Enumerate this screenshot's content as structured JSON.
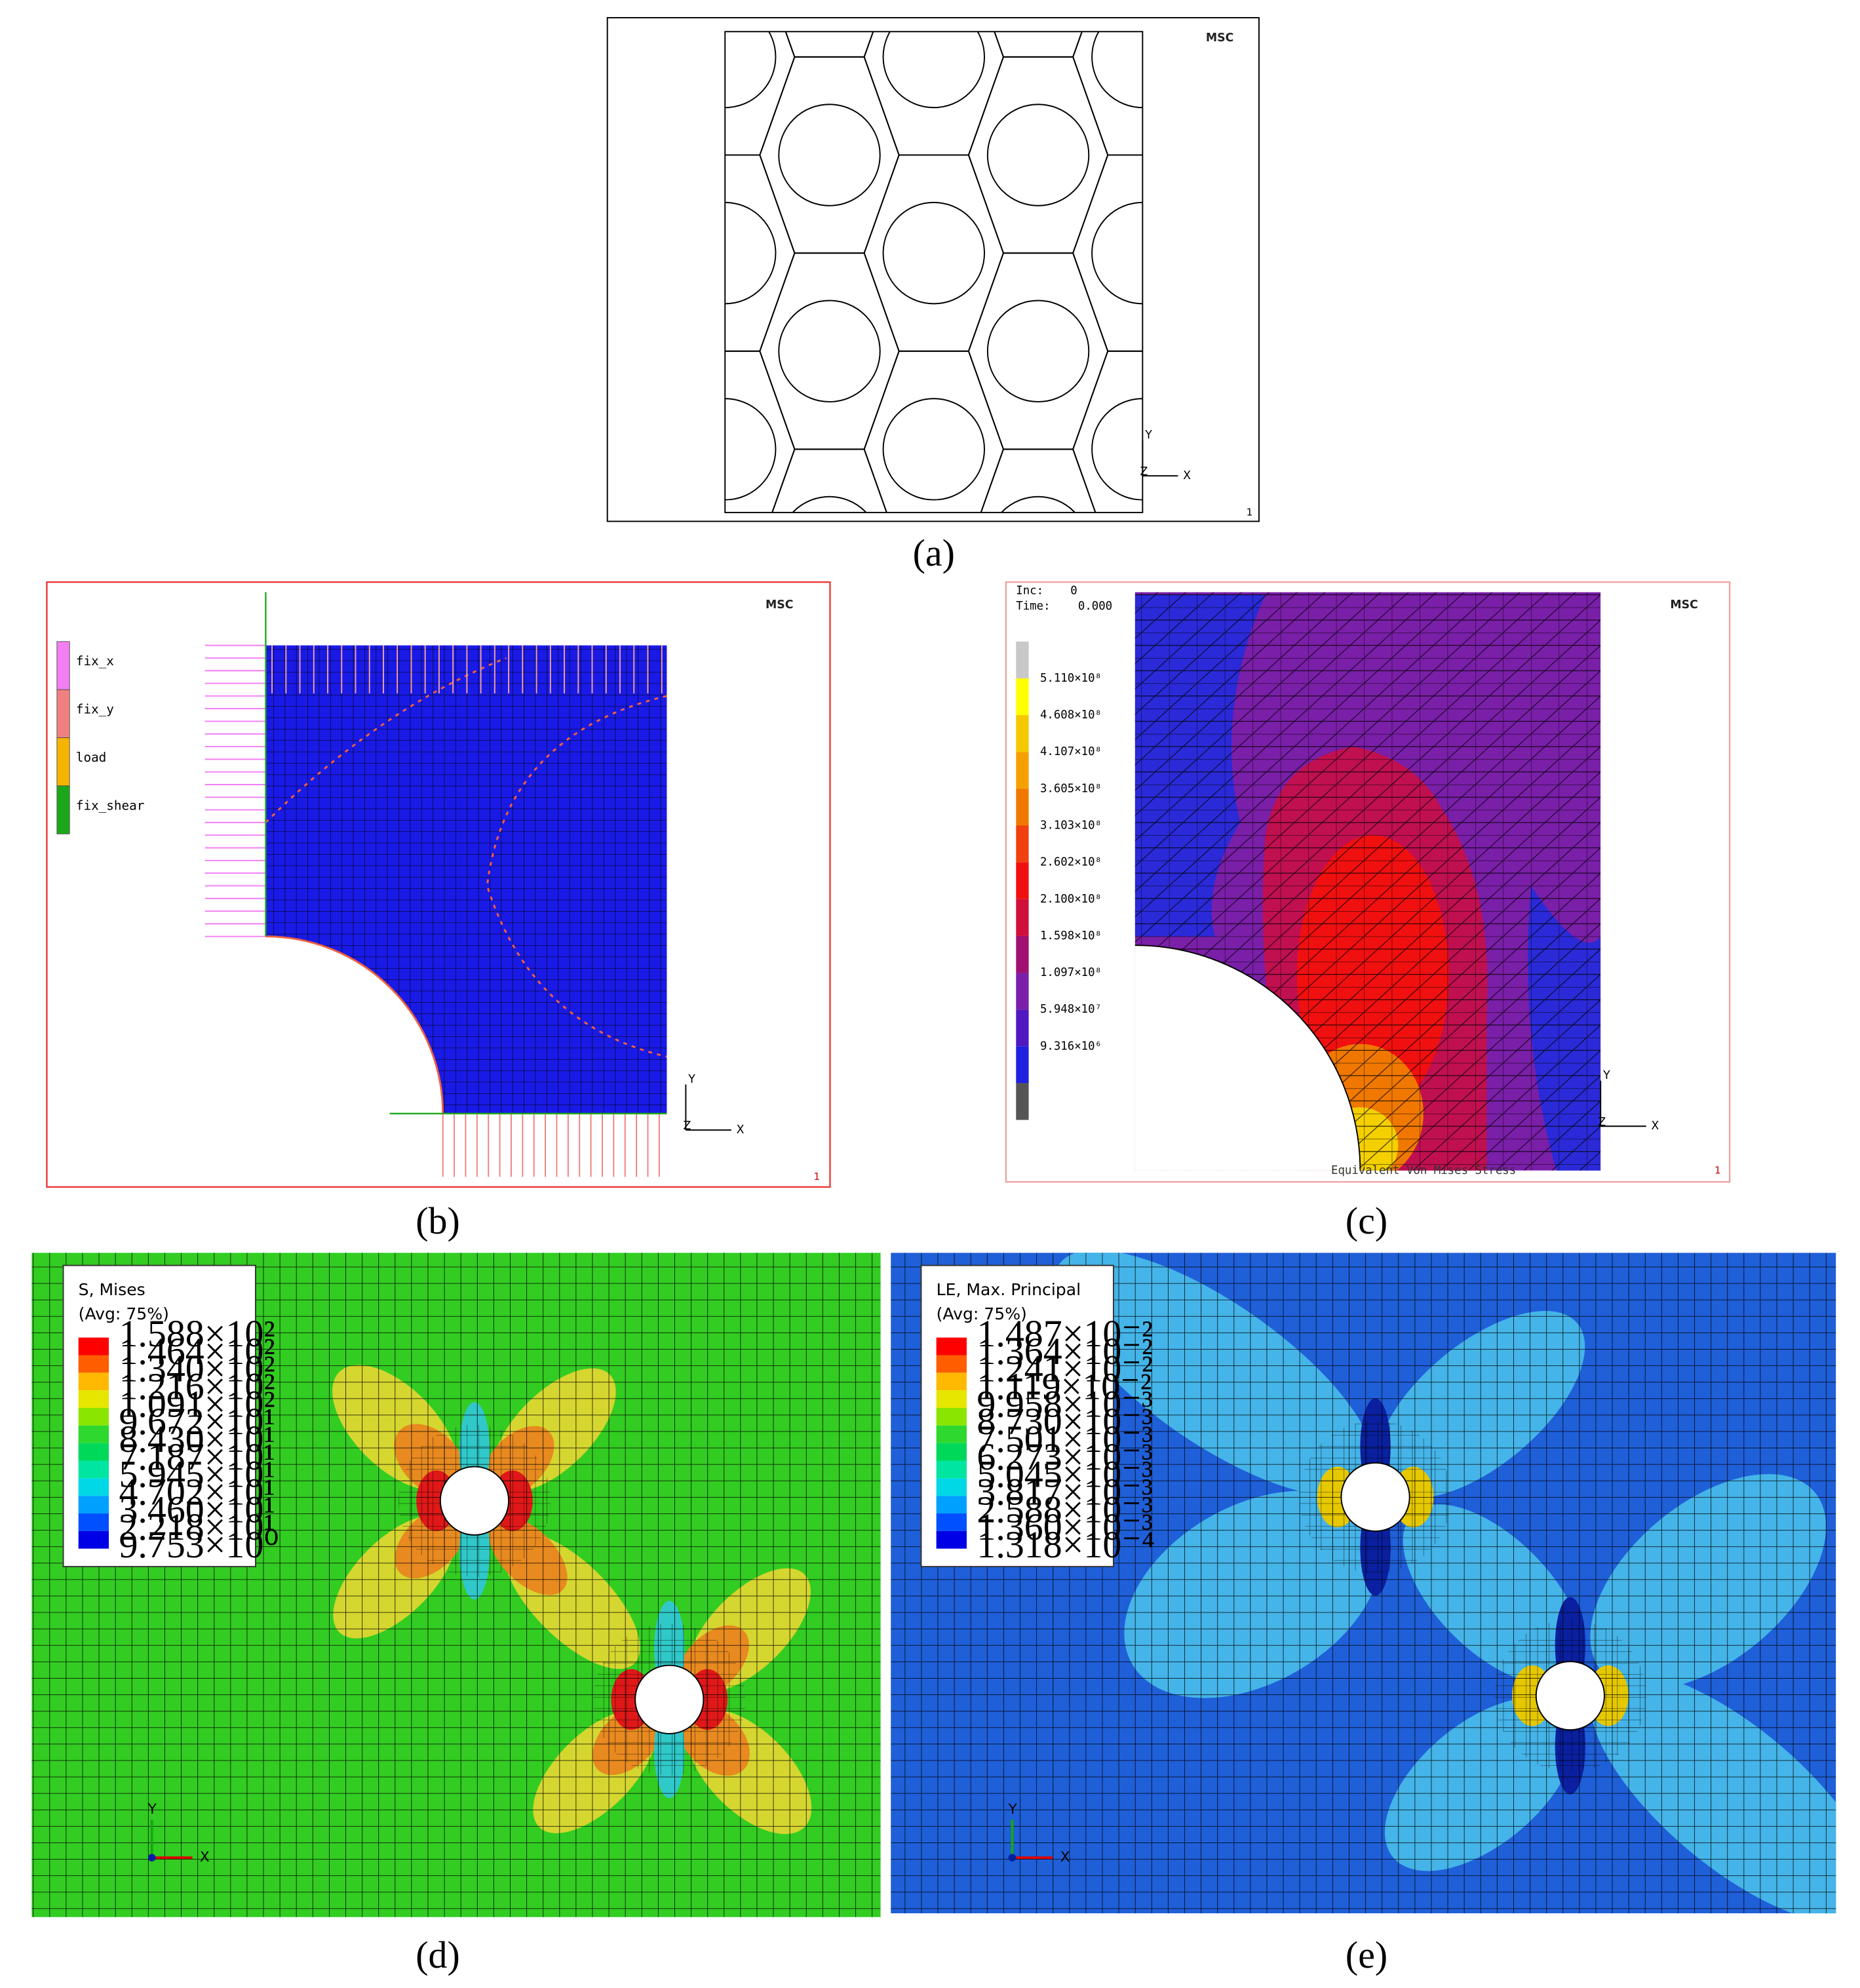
{
  "panels": [
    {
      "caption": "(a)",
      "logo": "MSC",
      "axes": {
        "y": "Y",
        "z": "Z",
        "x": "X"
      },
      "id_label": "1"
    },
    {
      "caption": "(b)",
      "logo": "MSC",
      "legend": [
        "fix_x",
        "fix_y",
        "load",
        "fix_shear"
      ],
      "axes": {
        "y": "Y",
        "z": "Z",
        "x": "X"
      },
      "id_label": "1"
    },
    {
      "caption": "(c)",
      "logo": "MSC",
      "inc_label": "Inc:",
      "inc": "0",
      "time_label": "Time:",
      "time": "0.000",
      "legend": [
        "5.110×10⁸",
        "4.608×10⁸",
        "4.107×10⁸",
        "3.605×10⁸",
        "3.103×10⁸",
        "2.602×10⁸",
        "2.100×10⁸",
        "1.598×10⁸",
        "1.097×10⁸",
        "5.948×10⁷",
        "9.316×10⁶"
      ],
      "result_label": "Equivalent Von Mises Stress",
      "axes": {
        "y": "Y",
        "z": "Z",
        "x": "X"
      },
      "id_label": "1"
    },
    {
      "caption": "(d)",
      "legend_title": "S, Mises",
      "legend_subtitle": "(Avg: 75%)",
      "legend": [
        "1.588×10²",
        "1.464×10²",
        "1.340×10²",
        "1.216×10²",
        "1.091×10²",
        "9.672×10¹",
        "8.430×10¹",
        "7.187×10¹",
        "5.945×10¹",
        "4.702×10¹",
        "3.460×10¹",
        "2.218×10¹",
        "9.753×10⁰"
      ],
      "axes": {
        "y": "Y",
        "x": "X"
      }
    },
    {
      "caption": "(e)",
      "legend_title": "LE, Max. Principal",
      "legend_subtitle": "(Avg: 75%)",
      "legend": [
        "1.487×10⁻²",
        "1.364×10⁻²",
        "1.241×10⁻²",
        "1.119×10⁻²",
        "9.958×10⁻³",
        "8.730×10⁻³",
        "7.501×10⁻³",
        "6.273×10⁻³",
        "5.045×10⁻³",
        "3.817×10⁻³",
        "2.588×10⁻³",
        "1.360×10⁻³",
        "1.318×10⁻⁴"
      ],
      "axes": {
        "y": "Y",
        "x": "X"
      }
    }
  ]
}
